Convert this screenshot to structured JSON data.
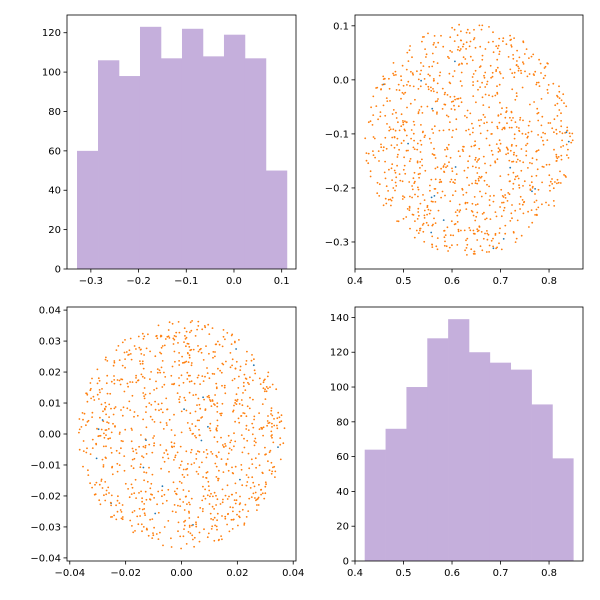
{
  "colors": {
    "histogram_fill": "#c5afdc",
    "scatter_orange": "#ff7f0e",
    "scatter_blue": "#1f77b4"
  },
  "chart_data": [
    {
      "id": "hist-top-left",
      "type": "bar",
      "title": "",
      "xlabel": "",
      "ylabel": "",
      "bin_edges": [
        -0.329,
        -0.285,
        -0.241,
        -0.197,
        -0.153,
        -0.109,
        -0.065,
        -0.021,
        0.023,
        0.067,
        0.111
      ],
      "values": [
        60,
        106,
        98,
        123,
        107,
        122,
        108,
        119,
        107,
        50
      ],
      "xlim": [
        -0.35,
        0.13
      ],
      "ylim": [
        0,
        129
      ],
      "xticks": [
        -0.3,
        -0.2,
        -0.1,
        0.0,
        0.1
      ],
      "xtick_labels": [
        "−0.3",
        "−0.2",
        "−0.1",
        "0.0",
        "0.1"
      ],
      "yticks": [
        0,
        20,
        40,
        60,
        80,
        100,
        120
      ],
      "ytick_labels": [
        "0",
        "20",
        "40",
        "60",
        "80",
        "100",
        "120"
      ],
      "grid": false
    },
    {
      "id": "scatter-top-right",
      "type": "scatter",
      "title": "",
      "xlabel": "",
      "ylabel": "",
      "point_count": 1000,
      "distribution": "uniform disc",
      "center": [
        0.635,
        -0.11
      ],
      "radius": [
        0.215,
        0.215
      ],
      "xlim": [
        0.4,
        0.87
      ],
      "ylim": [
        -0.35,
        0.12
      ],
      "xticks": [
        0.4,
        0.5,
        0.6,
        0.7,
        0.8
      ],
      "xtick_labels": [
        "0.4",
        "0.5",
        "0.6",
        "0.7",
        "0.8"
      ],
      "yticks": [
        0.1,
        0.0,
        -0.1,
        -0.2,
        -0.3
      ],
      "ytick_labels": [
        "0.1",
        "0.0",
        "−0.1",
        "−0.2",
        "−0.3"
      ],
      "grid": false
    },
    {
      "id": "scatter-bottom-left",
      "type": "scatter",
      "title": "",
      "xlabel": "",
      "ylabel": "",
      "point_count": 1000,
      "distribution": "uniform disc",
      "center": [
        0.0,
        0.0
      ],
      "radius": [
        0.037,
        0.037
      ],
      "xlim": [
        -0.041,
        0.041
      ],
      "ylim": [
        -0.041,
        0.041
      ],
      "xticks": [
        -0.04,
        -0.02,
        0.0,
        0.02,
        0.04
      ],
      "xtick_labels": [
        "−0.04",
        "−0.02",
        "0.00",
        "0.02",
        "0.04"
      ],
      "yticks": [
        0.04,
        0.03,
        0.02,
        0.01,
        0.0,
        -0.01,
        -0.02,
        -0.03,
        -0.04
      ],
      "ytick_labels": [
        "0.04",
        "0.03",
        "0.02",
        "0.01",
        "0.00",
        "−0.01",
        "−0.02",
        "−0.03",
        "−0.04"
      ],
      "grid": false
    },
    {
      "id": "hist-bottom-right",
      "type": "bar",
      "title": "",
      "xlabel": "",
      "ylabel": "",
      "bin_edges": [
        0.42,
        0.463,
        0.506,
        0.549,
        0.592,
        0.635,
        0.678,
        0.721,
        0.764,
        0.807,
        0.85
      ],
      "values": [
        64,
        76,
        100,
        128,
        139,
        120,
        114,
        110,
        90,
        59
      ],
      "xlim": [
        0.4,
        0.87
      ],
      "ylim": [
        0,
        146
      ],
      "xticks": [
        0.4,
        0.5,
        0.6,
        0.7,
        0.8
      ],
      "xtick_labels": [
        "0.4",
        "0.5",
        "0.6",
        "0.7",
        "0.8"
      ],
      "yticks": [
        0,
        20,
        40,
        60,
        80,
        100,
        120,
        140
      ],
      "ytick_labels": [
        "0",
        "20",
        "40",
        "60",
        "80",
        "100",
        "120",
        "140"
      ],
      "grid": false
    }
  ]
}
